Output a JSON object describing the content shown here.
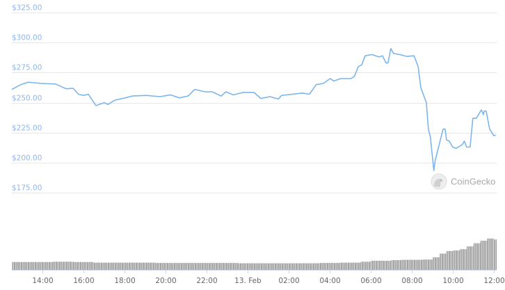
{
  "chart_data": {
    "type": "line",
    "title": "",
    "xlabel": "",
    "ylabel": "",
    "ylim": [
      175,
      325
    ],
    "grid": true,
    "legend": "none",
    "y_ticks": [
      "$175.00",
      "$200.00",
      "$225.00",
      "$250.00",
      "$275.00",
      "$300.00",
      "$325.00"
    ],
    "y_tick_values": [
      175,
      200,
      225,
      250,
      275,
      300,
      325
    ],
    "x_ticks": [
      "14:00",
      "16:00",
      "18:00",
      "20:00",
      "22:00",
      "13. Feb",
      "02:00",
      "04:00",
      "06:00",
      "08:00",
      "10:00",
      "12:00"
    ],
    "x_tick_times": [
      "02-12 14:00",
      "02-12 16:00",
      "02-12 18:00",
      "02-12 20:00",
      "02-12 22:00",
      "02-13 00:00",
      "02-13 02:00",
      "02-13 04:00",
      "02-13 06:00",
      "02-13 08:00",
      "02-13 10:00",
      "02-13 12:00"
    ],
    "colors": {
      "line": "#7cb5ec",
      "volume": "#999999",
      "grid": "#e6e6e6",
      "y_label": "#8fb6ea"
    },
    "price": [
      [
        "02-12 12:30",
        261
      ],
      [
        "02-12 12:56",
        265
      ],
      [
        "02-12 13:17",
        267
      ],
      [
        "02-12 13:57",
        266
      ],
      [
        "02-12 14:38",
        265.5
      ],
      [
        "02-12 15:09",
        261.5
      ],
      [
        "02-12 15:29",
        262
      ],
      [
        "02-12 15:45",
        257
      ],
      [
        "02-12 15:59",
        256
      ],
      [
        "02-12 16:14",
        257
      ],
      [
        "02-12 16:36",
        247.5
      ],
      [
        "02-12 17:00",
        250
      ],
      [
        "02-12 17:11",
        248.5
      ],
      [
        "02-12 17:31",
        252
      ],
      [
        "02-12 18:02",
        254
      ],
      [
        "02-12 18:22",
        255.5
      ],
      [
        "02-12 19:03",
        256
      ],
      [
        "02-12 19:43",
        255
      ],
      [
        "02-12 20:14",
        256.5
      ],
      [
        "02-12 20:40",
        254
      ],
      [
        "02-12 21:05",
        255.5
      ],
      [
        "02-12 21:25",
        261
      ],
      [
        "02-12 21:55",
        259
      ],
      [
        "02-12 22:16",
        259
      ],
      [
        "02-12 22:42",
        255.5
      ],
      [
        "02-12 22:56",
        259
      ],
      [
        "02-12 23:17",
        256.5
      ],
      [
        "02-12 23:47",
        258.5
      ],
      [
        "02-13 00:18",
        258.5
      ],
      [
        "02-13 00:38",
        253.5
      ],
      [
        "02-13 01:05",
        255
      ],
      [
        "02-13 01:29",
        253
      ],
      [
        "02-13 01:39",
        256
      ],
      [
        "02-13 02:10",
        257
      ],
      [
        "02-13 02:40",
        258
      ],
      [
        "02-13 03:00",
        257
      ],
      [
        "02-13 03:20",
        265
      ],
      [
        "02-13 03:41",
        266
      ],
      [
        "02-13 04:01",
        270
      ],
      [
        "02-13 04:11",
        268
      ],
      [
        "02-13 04:32",
        270
      ],
      [
        "02-13 05:02",
        270
      ],
      [
        "02-13 05:12",
        272
      ],
      [
        "02-13 05:23",
        280
      ],
      [
        "02-13 05:33",
        281.5
      ],
      [
        "02-13 05:43",
        289
      ],
      [
        "02-13 06:03",
        290
      ],
      [
        "02-13 06:24",
        288
      ],
      [
        "02-13 06:34",
        289
      ],
      [
        "02-13 06:44",
        283
      ],
      [
        "02-13 06:50",
        283
      ],
      [
        "02-13 06:58",
        295
      ],
      [
        "02-13 07:06",
        291
      ],
      [
        "02-13 07:25",
        290
      ],
      [
        "02-13 07:45",
        288.5
      ],
      [
        "02-13 08:06",
        289
      ],
      [
        "02-13 08:18",
        280
      ],
      [
        "02-13 08:26",
        262.5
      ],
      [
        "02-13 08:42",
        250
      ],
      [
        "02-13 08:48",
        228
      ],
      [
        "02-13 08:54",
        221
      ],
      [
        "02-13 09:04",
        193.5
      ],
      [
        "02-13 09:08",
        202
      ],
      [
        "02-13 09:16",
        211
      ],
      [
        "02-13 09:31",
        228
      ],
      [
        "02-13 09:37",
        228
      ],
      [
        "02-13 09:41",
        219
      ],
      [
        "02-13 09:49",
        218
      ],
      [
        "02-13 09:59",
        213
      ],
      [
        "02-13 10:09",
        212
      ],
      [
        "02-13 10:27",
        215
      ],
      [
        "02-13 10:33",
        218
      ],
      [
        "02-13 10:40",
        213
      ],
      [
        "02-13 10:50",
        213
      ],
      [
        "02-13 10:58",
        237
      ],
      [
        "02-13 11:08",
        237
      ],
      [
        "02-13 11:23",
        244
      ],
      [
        "02-13 11:29",
        240
      ],
      [
        "02-13 11:31",
        243
      ],
      [
        "02-13 11:37",
        243
      ],
      [
        "02-13 11:47",
        228
      ],
      [
        "02-13 11:59",
        222.5
      ],
      [
        "02-13 12:05",
        223
      ]
    ],
    "volume_relative": [
      [
        "02-12 12:30",
        0.25
      ],
      [
        "02-12 13:30",
        0.25
      ],
      [
        "02-12 14:30",
        0.26
      ],
      [
        "02-12 15:30",
        0.25
      ],
      [
        "02-12 16:30",
        0.23
      ],
      [
        "02-12 17:30",
        0.23
      ],
      [
        "02-12 18:30",
        0.23
      ],
      [
        "02-12 19:30",
        0.22
      ],
      [
        "02-12 20:30",
        0.22
      ],
      [
        "02-12 21:30",
        0.22
      ],
      [
        "02-12 22:30",
        0.22
      ],
      [
        "02-12 23:30",
        0.21
      ],
      [
        "02-13 00:30",
        0.21
      ],
      [
        "02-13 01:30",
        0.21
      ],
      [
        "02-13 02:30",
        0.21
      ],
      [
        "02-13 03:30",
        0.22
      ],
      [
        "02-13 04:30",
        0.23
      ],
      [
        "02-13 05:30",
        0.26
      ],
      [
        "02-13 06:00",
        0.29
      ],
      [
        "02-13 06:30",
        0.29
      ],
      [
        "02-13 07:00",
        0.31
      ],
      [
        "02-13 07:30",
        0.32
      ],
      [
        "02-13 08:00",
        0.32
      ],
      [
        "02-13 08:30",
        0.33
      ],
      [
        "02-13 09:00",
        0.4
      ],
      [
        "02-13 09:20",
        0.52
      ],
      [
        "02-13 09:40",
        0.6
      ],
      [
        "02-13 10:00",
        0.62
      ],
      [
        "02-13 10:20",
        0.66
      ],
      [
        "02-13 10:40",
        0.75
      ],
      [
        "02-13 11:00",
        0.85
      ],
      [
        "02-13 11:20",
        0.93
      ],
      [
        "02-13 11:40",
        1.0
      ],
      [
        "02-13 12:00",
        0.97
      ]
    ]
  },
  "watermark": {
    "text": "CoinGecko",
    "icon": "gecko-logo-icon"
  }
}
